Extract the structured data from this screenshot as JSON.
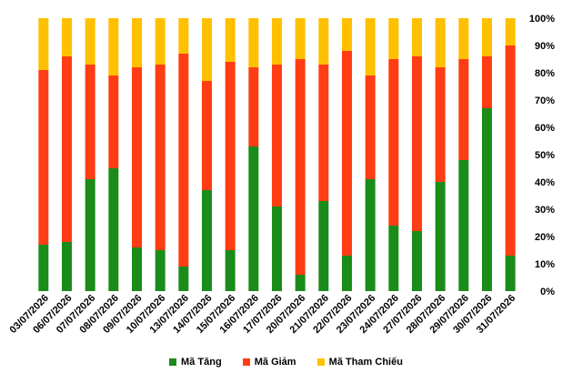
{
  "chart_data": {
    "type": "bar",
    "stacked": true,
    "title": "",
    "xlabel": "",
    "ylabel": "",
    "ylim": [
      0,
      100
    ],
    "y_ticks": [
      "0%",
      "10%",
      "20%",
      "30%",
      "40%",
      "50%",
      "60%",
      "70%",
      "80%",
      "90%",
      "100%"
    ],
    "y_axis_side": "right",
    "legend_position": "bottom",
    "grid": false,
    "categories": [
      "03/07/2026",
      "06/07/2026",
      "07/07/2026",
      "08/07/2026",
      "09/07/2026",
      "10/07/2026",
      "13/07/2026",
      "14/07/2026",
      "15/07/2026",
      "16/07/2026",
      "17/07/2026",
      "20/07/2026",
      "21/07/2026",
      "22/07/2026",
      "23/07/2026",
      "24/07/2026",
      "27/07/2026",
      "28/07/2026",
      "29/07/2026",
      "30/07/2026",
      "31/07/2026"
    ],
    "series": [
      {
        "name": "Mã Tăng",
        "color": "#1a8c1a",
        "values": [
          17,
          18,
          41,
          45,
          16,
          15,
          9,
          37,
          15,
          53,
          31,
          6,
          33,
          13,
          41,
          24,
          22,
          40,
          48,
          67,
          13
        ]
      },
      {
        "name": "Mã Giảm",
        "color": "#ff3d14",
        "values": [
          64,
          68,
          42,
          34,
          66,
          68,
          78,
          40,
          69,
          29,
          52,
          79,
          50,
          75,
          38,
          61,
          64,
          42,
          37,
          19,
          77
        ]
      },
      {
        "name": "Mã Tham Chiếu",
        "color": "#ffc000",
        "values": [
          19,
          14,
          17,
          21,
          18,
          17,
          13,
          23,
          16,
          18,
          17,
          15,
          17,
          12,
          21,
          15,
          14,
          18,
          15,
          14,
          10
        ]
      }
    ]
  }
}
